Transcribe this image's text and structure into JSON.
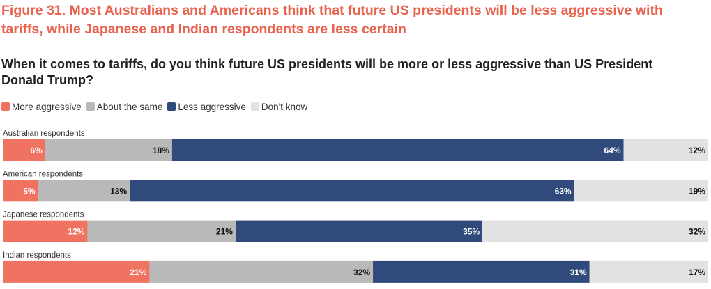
{
  "figure_title": "Figure 31. Most Australians and Americans think that future US presidents will be less aggressive with tariffs, while Japanese and Indian respondents are less certain",
  "question": "When it comes to tariffs, do you think future US presidents will be more or less aggressive than US President Donald Trump?",
  "colors": {
    "more": "#f07261",
    "same": "#b9b9b9",
    "less": "#2f4a7b",
    "dontknow": "#e2e2e2"
  },
  "chart_data": {
    "type": "bar",
    "orientation": "horizontal",
    "stacked": true,
    "normalized_percent": true,
    "title": "When it comes to tariffs, do you think future US presidents will be more or less aggressive than US President Donald Trump?",
    "categories": [
      "Australian respondents",
      "American respondents",
      "Japanese respondents",
      "Indian respondents"
    ],
    "series": [
      {
        "name": "More aggressive",
        "values": [
          6,
          5,
          12,
          21
        ]
      },
      {
        "name": "About the same",
        "values": [
          18,
          13,
          21,
          32
        ]
      },
      {
        "name": "Less aggressive",
        "values": [
          64,
          63,
          35,
          31
        ]
      },
      {
        "name": "Don't know",
        "values": [
          12,
          19,
          32,
          17
        ]
      }
    ],
    "value_suffix": "%",
    "legend_position": "top-left",
    "grid": false
  }
}
